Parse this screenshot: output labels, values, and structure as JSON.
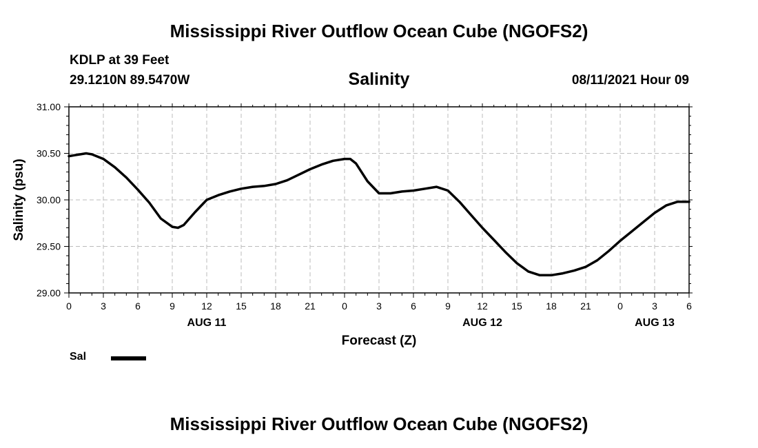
{
  "header": {
    "title": "Mississippi River Outflow Ocean Cube (NGOFS2)",
    "station": "KDLP at 39 Feet",
    "coordinates": "29.1210N  89.5470W",
    "variable": "Salinity",
    "datetime": "08/11/2021 Hour 09"
  },
  "footer": {
    "title": "Mississippi River Outflow Ocean Cube (NGOFS2)"
  },
  "legend": {
    "label": "Sal",
    "color": "#000000"
  },
  "chart_data": {
    "type": "line",
    "title": "Salinity",
    "xlabel": "Forecast (Z)",
    "ylabel": "Salinity (psu)",
    "xlim": [
      0,
      54
    ],
    "ylim": [
      29.0,
      31.0
    ],
    "grid": true,
    "x_ticks": [
      0,
      3,
      6,
      9,
      12,
      15,
      18,
      21,
      24,
      27,
      30,
      33,
      36,
      39,
      42,
      45,
      48,
      51,
      54
    ],
    "x_tick_labels": [
      "0",
      "3",
      "6",
      "9",
      "12",
      "15",
      "18",
      "21",
      "0",
      "3",
      "6",
      "9",
      "12",
      "15",
      "18",
      "21",
      "0",
      "3",
      "6"
    ],
    "y_ticks": [
      29.0,
      29.5,
      30.0,
      30.5,
      31.0
    ],
    "y_tick_labels": [
      "29.00",
      "29.50",
      "30.00",
      "30.50",
      "31.00"
    ],
    "date_labels": [
      {
        "x": 12,
        "label": "AUG 11"
      },
      {
        "x": 36,
        "label": "AUG 12"
      },
      {
        "x": 51,
        "label": "AUG 13"
      }
    ],
    "series": [
      {
        "name": "Sal",
        "x": [
          0,
          0.5,
          1,
          1.5,
          2,
          3,
          4,
          5,
          6,
          7,
          8,
          9,
          9.5,
          10,
          11,
          12,
          13,
          14,
          15,
          16,
          17,
          18,
          19,
          20,
          21,
          22,
          23,
          24,
          24.5,
          25,
          26,
          27,
          28,
          29,
          30,
          31,
          32,
          33,
          34,
          35,
          36,
          37,
          38,
          39,
          40,
          41,
          42,
          43,
          44,
          45,
          46,
          47,
          48,
          49,
          50,
          51,
          52,
          53,
          54
        ],
        "values": [
          30.47,
          30.48,
          30.49,
          30.5,
          30.49,
          30.44,
          30.35,
          30.24,
          30.11,
          29.97,
          29.8,
          29.71,
          29.7,
          29.73,
          29.87,
          30.0,
          30.05,
          30.09,
          30.12,
          30.14,
          30.15,
          30.17,
          30.21,
          30.27,
          30.33,
          30.38,
          30.42,
          30.44,
          30.44,
          30.39,
          30.2,
          30.07,
          30.07,
          30.09,
          30.1,
          30.12,
          30.14,
          30.1,
          29.98,
          29.84,
          29.7,
          29.57,
          29.44,
          29.32,
          29.23,
          29.19,
          29.19,
          29.21,
          29.24,
          29.28,
          29.35,
          29.45,
          29.56,
          29.66,
          29.76,
          29.86,
          29.94,
          29.98,
          29.98
        ]
      }
    ]
  }
}
